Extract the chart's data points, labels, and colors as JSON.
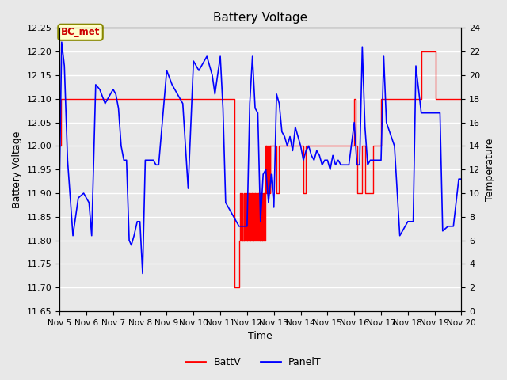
{
  "title": "Battery Voltage",
  "ylabel_left": "Battery Voltage",
  "ylabel_right": "Temperature",
  "xlabel": "Time",
  "ylim_left": [
    11.65,
    12.25
  ],
  "ylim_right": [
    0,
    24
  ],
  "background_color": "#e8e8e8",
  "grid_color": "white",
  "annotation_text": "BC_met",
  "annotation_color": "#cc0000",
  "annotation_bg": "#ffffcc",
  "annotation_border": "#888800",
  "batt_color": "red",
  "panel_color": "blue",
  "legend_batt": "BattV",
  "legend_panel": "PanelT",
  "xtick_labels": [
    "Nov 5",
    "Nov 6",
    "Nov 7",
    "Nov 8",
    "Nov 9",
    "Nov 10",
    "Nov 11",
    "Nov 12",
    "Nov 13",
    "Nov 14",
    "Nov 15",
    "Nov 16",
    "Nov 17",
    "Nov 18",
    "Nov 19",
    "Nov 20"
  ],
  "xtick_positions": [
    5,
    6,
    7,
    8,
    9,
    10,
    11,
    12,
    13,
    14,
    15,
    16,
    17,
    18,
    19,
    20
  ],
  "ytick_left": [
    11.65,
    11.7,
    11.75,
    11.8,
    11.85,
    11.9,
    11.95,
    12.0,
    12.05,
    12.1,
    12.15,
    12.2,
    12.25
  ],
  "ytick_right": [
    0,
    2,
    4,
    6,
    8,
    10,
    12,
    14,
    16,
    18,
    20,
    22,
    24
  ],
  "batt_data": [
    [
      5.0,
      12.0
    ],
    [
      5.05,
      12.1
    ],
    [
      11.48,
      12.1
    ],
    [
      11.52,
      11.7
    ],
    [
      11.7,
      11.8
    ],
    [
      11.75,
      11.9
    ],
    [
      11.78,
      11.8
    ],
    [
      11.82,
      11.9
    ],
    [
      11.84,
      11.8
    ],
    [
      11.87,
      11.9
    ],
    [
      11.89,
      11.8
    ],
    [
      11.91,
      11.9
    ],
    [
      11.93,
      11.8
    ],
    [
      11.95,
      11.9
    ],
    [
      11.97,
      11.8
    ],
    [
      11.99,
      11.9
    ],
    [
      12.01,
      11.8
    ],
    [
      12.03,
      11.9
    ],
    [
      12.05,
      11.8
    ],
    [
      12.07,
      11.9
    ],
    [
      12.09,
      11.8
    ],
    [
      12.11,
      11.9
    ],
    [
      12.13,
      11.8
    ],
    [
      12.15,
      11.9
    ],
    [
      12.17,
      11.8
    ],
    [
      12.19,
      11.9
    ],
    [
      12.21,
      11.8
    ],
    [
      12.23,
      11.9
    ],
    [
      12.25,
      11.8
    ],
    [
      12.27,
      11.9
    ],
    [
      12.29,
      11.8
    ],
    [
      12.31,
      11.9
    ],
    [
      12.33,
      11.8
    ],
    [
      12.35,
      11.9
    ],
    [
      12.37,
      11.8
    ],
    [
      12.39,
      11.9
    ],
    [
      12.41,
      11.8
    ],
    [
      12.43,
      11.9
    ],
    [
      12.45,
      11.8
    ],
    [
      12.47,
      11.9
    ],
    [
      12.49,
      11.8
    ],
    [
      12.51,
      11.9
    ],
    [
      12.53,
      11.8
    ],
    [
      12.55,
      11.9
    ],
    [
      12.57,
      11.8
    ],
    [
      12.59,
      11.9
    ],
    [
      12.61,
      11.8
    ],
    [
      12.63,
      11.9
    ],
    [
      12.65,
      11.8
    ],
    [
      12.67,
      12.0
    ],
    [
      12.7,
      11.9
    ],
    [
      12.72,
      12.0
    ],
    [
      12.75,
      11.9
    ],
    [
      12.77,
      12.0
    ],
    [
      12.79,
      11.9
    ],
    [
      12.82,
      12.0
    ],
    [
      12.85,
      11.9
    ],
    [
      12.87,
      12.0
    ],
    [
      12.9,
      12.0
    ],
    [
      13.0,
      12.0
    ],
    [
      13.1,
      11.9
    ],
    [
      13.2,
      12.0
    ],
    [
      13.3,
      12.0
    ],
    [
      13.5,
      12.0
    ],
    [
      13.6,
      12.0
    ],
    [
      13.7,
      12.0
    ],
    [
      13.8,
      12.0
    ],
    [
      14.0,
      12.0
    ],
    [
      14.1,
      11.9
    ],
    [
      14.2,
      12.0
    ],
    [
      14.3,
      12.0
    ],
    [
      14.5,
      12.0
    ],
    [
      14.6,
      12.0
    ],
    [
      14.7,
      12.0
    ],
    [
      14.8,
      12.0
    ],
    [
      15.0,
      12.0
    ],
    [
      15.1,
      12.0
    ],
    [
      15.2,
      12.0
    ],
    [
      15.3,
      12.0
    ],
    [
      16.0,
      12.1
    ],
    [
      16.05,
      12.0
    ],
    [
      16.1,
      11.9
    ],
    [
      16.2,
      11.9
    ],
    [
      16.3,
      12.0
    ],
    [
      16.4,
      11.9
    ],
    [
      16.5,
      11.9
    ],
    [
      16.6,
      11.9
    ],
    [
      16.7,
      12.0
    ],
    [
      16.8,
      12.0
    ],
    [
      16.9,
      12.0
    ],
    [
      17.0,
      12.1
    ],
    [
      17.1,
      12.1
    ],
    [
      17.2,
      12.1
    ],
    [
      17.3,
      12.1
    ],
    [
      18.0,
      12.1
    ],
    [
      18.1,
      12.1
    ],
    [
      18.48,
      12.1
    ],
    [
      18.52,
      12.2
    ],
    [
      19.0,
      12.2
    ],
    [
      19.05,
      12.1
    ],
    [
      19.5,
      12.1
    ],
    [
      20.0,
      12.1
    ]
  ],
  "panel_data": [
    [
      5.0,
      11.93
    ],
    [
      5.08,
      12.22
    ],
    [
      5.18,
      12.17
    ],
    [
      5.3,
      11.97
    ],
    [
      5.5,
      11.81
    ],
    [
      5.7,
      11.89
    ],
    [
      5.9,
      11.9
    ],
    [
      6.0,
      11.89
    ],
    [
      6.1,
      11.88
    ],
    [
      6.2,
      11.81
    ],
    [
      6.35,
      12.13
    ],
    [
      6.5,
      12.12
    ],
    [
      6.7,
      12.09
    ],
    [
      7.0,
      12.12
    ],
    [
      7.1,
      12.11
    ],
    [
      7.2,
      12.08
    ],
    [
      7.3,
      12.0
    ],
    [
      7.4,
      11.97
    ],
    [
      7.5,
      11.97
    ],
    [
      7.6,
      11.8
    ],
    [
      7.68,
      11.79
    ],
    [
      7.78,
      11.81
    ],
    [
      7.9,
      11.84
    ],
    [
      8.0,
      11.84
    ],
    [
      8.1,
      11.73
    ],
    [
      8.2,
      11.97
    ],
    [
      8.3,
      11.97
    ],
    [
      8.4,
      11.97
    ],
    [
      8.5,
      11.97
    ],
    [
      8.6,
      11.96
    ],
    [
      8.7,
      11.96
    ],
    [
      9.0,
      12.16
    ],
    [
      9.2,
      12.13
    ],
    [
      9.4,
      12.11
    ],
    [
      9.5,
      12.1
    ],
    [
      9.6,
      12.09
    ],
    [
      9.8,
      11.91
    ],
    [
      10.0,
      12.18
    ],
    [
      10.2,
      12.16
    ],
    [
      10.5,
      12.19
    ],
    [
      10.7,
      12.15
    ],
    [
      10.8,
      12.11
    ],
    [
      11.0,
      12.19
    ],
    [
      11.1,
      12.08
    ],
    [
      11.2,
      11.88
    ],
    [
      11.5,
      11.85
    ],
    [
      11.7,
      11.83
    ],
    [
      12.0,
      11.83
    ],
    [
      12.1,
      12.09
    ],
    [
      12.2,
      12.19
    ],
    [
      12.3,
      12.08
    ],
    [
      12.4,
      12.07
    ],
    [
      12.5,
      11.84
    ],
    [
      12.6,
      11.94
    ],
    [
      12.7,
      11.95
    ],
    [
      12.8,
      11.88
    ],
    [
      12.9,
      11.94
    ],
    [
      13.0,
      11.87
    ],
    [
      13.1,
      12.11
    ],
    [
      13.2,
      12.09
    ],
    [
      13.3,
      12.03
    ],
    [
      13.4,
      12.02
    ],
    [
      13.5,
      12.0
    ],
    [
      13.6,
      12.02
    ],
    [
      13.7,
      11.99
    ],
    [
      13.8,
      12.04
    ],
    [
      13.9,
      12.02
    ],
    [
      14.0,
      12.0
    ],
    [
      14.1,
      11.97
    ],
    [
      14.2,
      11.99
    ],
    [
      14.3,
      12.0
    ],
    [
      14.4,
      11.98
    ],
    [
      14.5,
      11.97
    ],
    [
      14.6,
      11.99
    ],
    [
      14.7,
      11.98
    ],
    [
      14.8,
      11.96
    ],
    [
      14.9,
      11.97
    ],
    [
      15.0,
      11.97
    ],
    [
      15.1,
      11.95
    ],
    [
      15.2,
      11.98
    ],
    [
      15.3,
      11.96
    ],
    [
      15.4,
      11.97
    ],
    [
      15.5,
      11.96
    ],
    [
      15.6,
      11.96
    ],
    [
      15.8,
      11.96
    ],
    [
      16.0,
      12.05
    ],
    [
      16.1,
      11.96
    ],
    [
      16.2,
      11.96
    ],
    [
      16.3,
      12.21
    ],
    [
      16.4,
      12.04
    ],
    [
      16.5,
      11.96
    ],
    [
      16.6,
      11.97
    ],
    [
      16.7,
      11.97
    ],
    [
      16.8,
      11.97
    ],
    [
      16.9,
      11.97
    ],
    [
      17.0,
      11.97
    ],
    [
      17.1,
      12.19
    ],
    [
      17.2,
      12.05
    ],
    [
      17.5,
      12.0
    ],
    [
      17.7,
      11.81
    ],
    [
      17.9,
      11.83
    ],
    [
      18.0,
      11.84
    ],
    [
      18.2,
      11.84
    ],
    [
      18.3,
      12.17
    ],
    [
      18.5,
      12.07
    ],
    [
      18.7,
      12.07
    ],
    [
      18.9,
      12.07
    ],
    [
      19.0,
      12.07
    ],
    [
      19.2,
      12.07
    ],
    [
      19.3,
      11.82
    ],
    [
      19.5,
      11.83
    ],
    [
      19.7,
      11.83
    ],
    [
      19.9,
      11.93
    ],
    [
      20.0,
      11.93
    ]
  ]
}
